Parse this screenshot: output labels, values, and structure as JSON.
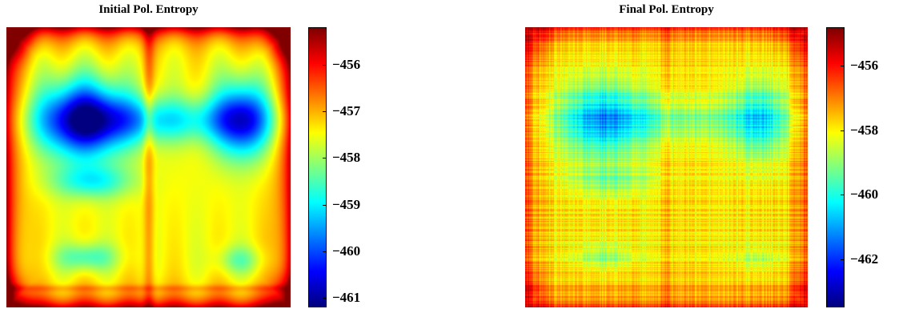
{
  "chart_data": [
    {
      "type": "heatmap",
      "title": "Initial Pol. Entropy",
      "xlabel": "",
      "ylabel": "",
      "colormap": "jet",
      "colorbar": {
        "range": [
          -461.2,
          -455.2
        ],
        "ticks": [
          -456,
          -457,
          -458,
          -459,
          -460,
          -461
        ],
        "tick_labels": [
          "−456",
          "−457",
          "−458",
          "−459",
          "−460",
          "−461"
        ]
      },
      "description_values": {
        "min_region": "upper-left center, approx -461",
        "max_region": "corners and edges, approx -455.5"
      }
    },
    {
      "type": "heatmap",
      "title": "Final Pol. Entropy",
      "xlabel": "",
      "ylabel": "",
      "colormap": "jet",
      "colorbar": {
        "range": [
          -463.5,
          -454.8
        ],
        "ticks": [
          -456,
          -458,
          -460,
          -462
        ],
        "tick_labels": [
          "−456",
          "−458",
          "−460",
          "−462"
        ]
      },
      "description_values": {
        "min_region": "upper band around rows 0.3, approx -461",
        "max_region": "edges, approx -455"
      }
    }
  ]
}
